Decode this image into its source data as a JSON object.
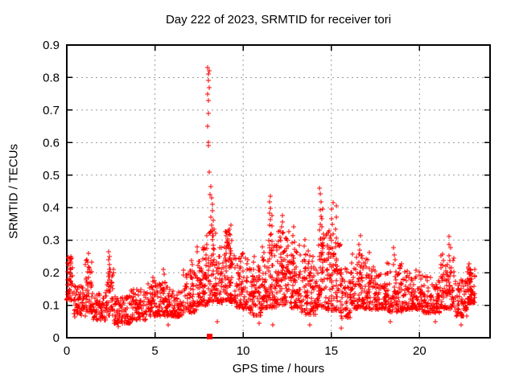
{
  "window": {
    "background": "#ffffff"
  },
  "colors": {
    "marker": "#ff0000",
    "grid": "#9a9a9a",
    "axis": "#000000",
    "text": "#000000"
  },
  "chart_data": {
    "type": "scatter",
    "title": "Day 222 of 2023, SRMTID for receiver tori",
    "xlabel": "GPS time / hours",
    "ylabel": "SRMTID / TECUs",
    "xlim": [
      0,
      24
    ],
    "ylim": [
      0,
      0.9
    ],
    "x_ticks": [
      0,
      5,
      10,
      15,
      20
    ],
    "x_tick_labels": [
      "0",
      "5",
      "10",
      "15",
      "20"
    ],
    "y_ticks": [
      0,
      0.1,
      0.2,
      0.3,
      0.4,
      0.5,
      0.6,
      0.7,
      0.8,
      0.9
    ],
    "y_tick_labels": [
      "0",
      "0.1",
      "0.2",
      "0.3",
      "0.4",
      "0.5",
      "0.6",
      "0.7",
      "0.8",
      "0.9"
    ],
    "grid": true,
    "legend": "none",
    "marker": {
      "shape": "plus",
      "color": "#ff0000",
      "size": 7
    },
    "special_point": {
      "x": 8.08,
      "y": 0.004,
      "shape": "filled-square",
      "color": "#ff0000",
      "size": 7
    },
    "seed": 7,
    "band_segments": [
      [
        0.0,
        0.35,
        0.11,
        0.25,
        150
      ],
      [
        0.35,
        1.05,
        0.06,
        0.16,
        85
      ],
      [
        1.05,
        1.45,
        0.07,
        0.24,
        110
      ],
      [
        1.45,
        2.2,
        0.05,
        0.14,
        85
      ],
      [
        2.2,
        2.65,
        0.06,
        0.22,
        105
      ],
      [
        2.65,
        3.6,
        0.04,
        0.13,
        85
      ],
      [
        3.6,
        4.6,
        0.05,
        0.15,
        85
      ],
      [
        4.6,
        5.3,
        0.06,
        0.18,
        90
      ],
      [
        5.3,
        6.0,
        0.06,
        0.17,
        90
      ],
      [
        6.0,
        6.6,
        0.06,
        0.15,
        85
      ],
      [
        6.6,
        7.35,
        0.07,
        0.21,
        95
      ],
      [
        7.35,
        8.0,
        0.09,
        0.28,
        105
      ],
      [
        8.0,
        8.6,
        0.1,
        0.33,
        110
      ],
      [
        8.6,
        9.0,
        0.1,
        0.28,
        105
      ],
      [
        9.0,
        9.6,
        0.1,
        0.33,
        110
      ],
      [
        9.6,
        10.3,
        0.08,
        0.26,
        105
      ],
      [
        10.3,
        11.1,
        0.06,
        0.22,
        100
      ],
      [
        11.1,
        11.9,
        0.08,
        0.3,
        110
      ],
      [
        11.9,
        12.6,
        0.09,
        0.33,
        110
      ],
      [
        12.6,
        13.3,
        0.08,
        0.3,
        105
      ],
      [
        13.3,
        14.1,
        0.06,
        0.27,
        100
      ],
      [
        14.1,
        14.7,
        0.08,
        0.33,
        110
      ],
      [
        14.7,
        15.5,
        0.07,
        0.33,
        110
      ],
      [
        15.5,
        16.1,
        0.05,
        0.22,
        95
      ],
      [
        16.1,
        17.0,
        0.08,
        0.26,
        100
      ],
      [
        17.0,
        18.1,
        0.08,
        0.23,
        95
      ],
      [
        18.1,
        19.0,
        0.07,
        0.24,
        95
      ],
      [
        19.0,
        20.2,
        0.08,
        0.21,
        92
      ],
      [
        20.2,
        21.2,
        0.07,
        0.19,
        90
      ],
      [
        21.2,
        22.0,
        0.08,
        0.26,
        95
      ],
      [
        22.0,
        22.7,
        0.06,
        0.18,
        90
      ],
      [
        22.7,
        23.15,
        0.1,
        0.23,
        160
      ]
    ],
    "spike_columns": [
      [
        1.2,
        0.15,
        0.26,
        8
      ],
      [
        2.42,
        0.14,
        0.27,
        9
      ],
      [
        4.85,
        0.12,
        0.19,
        5
      ],
      [
        5.5,
        0.12,
        0.21,
        6
      ],
      [
        7.1,
        0.13,
        0.24,
        7
      ],
      [
        7.9,
        0.18,
        0.31,
        8
      ],
      [
        8.3,
        0.2,
        0.33,
        6
      ],
      [
        9.05,
        0.2,
        0.33,
        8
      ],
      [
        9.25,
        0.22,
        0.35,
        8
      ],
      [
        10.62,
        0.14,
        0.25,
        6
      ],
      [
        11.52,
        0.22,
        0.44,
        12
      ],
      [
        11.62,
        0.2,
        0.37,
        8
      ],
      [
        12.2,
        0.2,
        0.38,
        10
      ],
      [
        12.55,
        0.18,
        0.33,
        7
      ],
      [
        12.9,
        0.18,
        0.34,
        8
      ],
      [
        13.5,
        0.16,
        0.3,
        7
      ],
      [
        14.38,
        0.22,
        0.46,
        12
      ],
      [
        14.5,
        0.2,
        0.4,
        8
      ],
      [
        15.05,
        0.2,
        0.42,
        10
      ],
      [
        15.25,
        0.18,
        0.4,
        8
      ],
      [
        16.6,
        0.16,
        0.31,
        9
      ],
      [
        17.1,
        0.14,
        0.26,
        6
      ],
      [
        18.6,
        0.14,
        0.28,
        8
      ],
      [
        21.7,
        0.16,
        0.31,
        9
      ],
      [
        22.85,
        0.15,
        0.23,
        6
      ]
    ],
    "peak_points": [
      [
        8.0,
        0.83
      ],
      [
        8.06,
        0.82
      ],
      [
        8.03,
        0.81
      ],
      [
        8.04,
        0.79
      ],
      [
        8.07,
        0.77
      ],
      [
        7.98,
        0.75
      ],
      [
        8.03,
        0.73
      ],
      [
        8.05,
        0.69
      ],
      [
        7.99,
        0.65
      ],
      [
        8.04,
        0.6
      ],
      [
        8.05,
        0.59
      ],
      [
        8.08,
        0.51
      ],
      [
        8.17,
        0.465
      ],
      [
        8.14,
        0.44
      ],
      [
        8.21,
        0.43
      ],
      [
        8.24,
        0.41
      ],
      [
        8.28,
        0.39
      ],
      [
        8.18,
        0.37
      ],
      [
        8.31,
        0.36
      ],
      [
        8.22,
        0.345
      ],
      [
        8.34,
        0.335
      ],
      [
        8.12,
        0.325
      ],
      [
        8.27,
        0.315
      ]
    ],
    "low_outliers": [
      [
        2.9,
        0.035
      ],
      [
        5.75,
        0.04
      ],
      [
        8.55,
        0.05
      ],
      [
        10.9,
        0.045
      ],
      [
        11.7,
        0.04
      ],
      [
        13.8,
        0.04
      ],
      [
        15.55,
        0.03
      ],
      [
        18.35,
        0.05
      ],
      [
        20.9,
        0.05
      ],
      [
        22.35,
        0.04
      ]
    ]
  }
}
